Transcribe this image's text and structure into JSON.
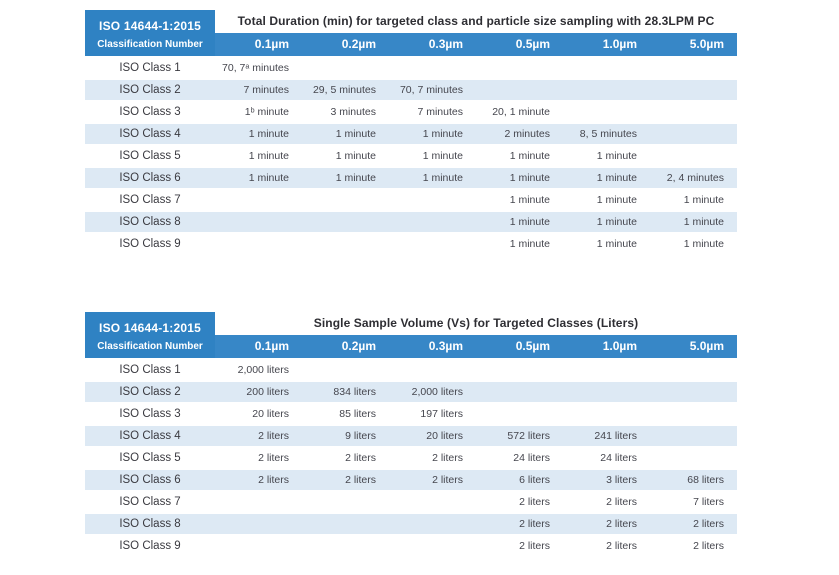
{
  "colors": {
    "header_blue": "#3787c7",
    "corner_blue": "#2f82c3",
    "stripe": "#dde9f4",
    "title_text": "#2e2e33",
    "label_text": "#3a3a40",
    "value_text": "#45464e",
    "header_text": "#ffffff"
  },
  "tables": [
    {
      "corner_line1": "ISO 14644-1:2015",
      "corner_line2": "Classification Number",
      "title": "Total Duration (min) for targeted class and particle size sampling with 28.3LPM PC",
      "columns": [
        "0.1µm",
        "0.2µm",
        "0.3µm",
        "0.5µm",
        "1.0µm",
        "5.0µm"
      ],
      "rows": [
        {
          "label": "ISO Class 1",
          "values": [
            "70, 7ᵃ minutes",
            "",
            "",
            "",
            "",
            ""
          ]
        },
        {
          "label": "ISO Class 2",
          "values": [
            "7 minutes",
            "29, 5 minutes",
            "70, 7 minutes",
            "",
            "",
            ""
          ]
        },
        {
          "label": "ISO Class 3",
          "values": [
            "1ᵇ minute",
            "3 minutes",
            "7 minutes",
            "20, 1 minute",
            "",
            ""
          ]
        },
        {
          "label": "ISO Class 4",
          "values": [
            "1 minute",
            "1 minute",
            "1 minute",
            "2 minutes",
            "8, 5 minutes",
            ""
          ]
        },
        {
          "label": "ISO Class 5",
          "values": [
            "1 minute",
            "1 minute",
            "1 minute",
            "1 minute",
            "1 minute",
            ""
          ]
        },
        {
          "label": "ISO Class 6",
          "values": [
            "1 minute",
            "1 minute",
            "1 minute",
            "1 minute",
            "1 minute",
            "2, 4 minutes"
          ]
        },
        {
          "label": "ISO Class 7",
          "values": [
            "",
            "",
            "",
            "1 minute",
            "1 minute",
            "1 minute"
          ]
        },
        {
          "label": "ISO Class 8",
          "values": [
            "",
            "",
            "",
            "1 minute",
            "1 minute",
            "1 minute"
          ]
        },
        {
          "label": "ISO Class 9",
          "values": [
            "",
            "",
            "",
            "1 minute",
            "1 minute",
            "1 minute"
          ]
        }
      ]
    },
    {
      "corner_line1": "ISO 14644-1:2015",
      "corner_line2": "Classification Number",
      "title": "Single Sample Volume (Vs) for Targeted Classes (Liters)",
      "columns": [
        "0.1µm",
        "0.2µm",
        "0.3µm",
        "0.5µm",
        "1.0µm",
        "5.0µm"
      ],
      "rows": [
        {
          "label": "ISO Class 1",
          "values": [
            "2,000 liters",
            "",
            "",
            "",
            "",
            ""
          ]
        },
        {
          "label": "ISO Class 2",
          "values": [
            "200 liters",
            "834 liters",
            "2,000 liters",
            "",
            "",
            ""
          ]
        },
        {
          "label": "ISO Class 3",
          "values": [
            "20 liters",
            "85 liters",
            "197 liters",
            "",
            "",
            ""
          ]
        },
        {
          "label": "ISO Class 4",
          "values": [
            "2 liters",
            "9 liters",
            "20 liters",
            "572 liters",
            "241 liters",
            ""
          ]
        },
        {
          "label": "ISO Class 5",
          "values": [
            "2 liters",
            "2 liters",
            "2 liters",
            "24 liters",
            "24 liters",
            ""
          ]
        },
        {
          "label": "ISO Class 6",
          "values": [
            "2 liters",
            "2 liters",
            "2 liters",
            "6 liters",
            "3 liters",
            "68 liters"
          ]
        },
        {
          "label": "ISO Class 7",
          "values": [
            "",
            "",
            "",
            "2 liters",
            "2 liters",
            "7 liters"
          ]
        },
        {
          "label": "ISO Class 8",
          "values": [
            "",
            "",
            "",
            "2 liters",
            "2 liters",
            "2 liters"
          ]
        },
        {
          "label": "ISO Class 9",
          "values": [
            "",
            "",
            "",
            "2 liters",
            "2 liters",
            "2 liters"
          ]
        }
      ]
    }
  ]
}
